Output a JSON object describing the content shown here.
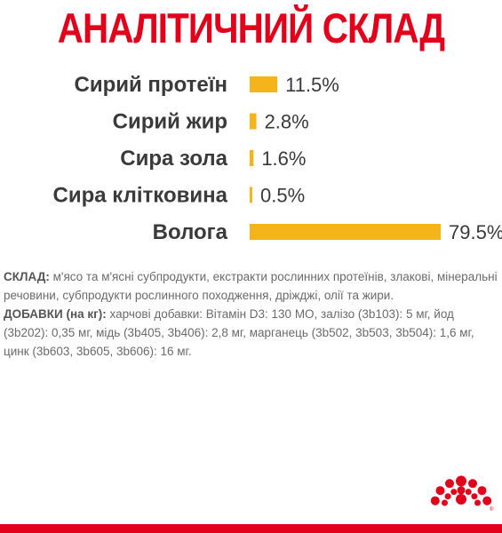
{
  "title": "АНАЛІТИЧНИЙ СКЛАД",
  "colors": {
    "brand_red": "#e2001a",
    "bar_yellow": "#f4b41a",
    "text_dark": "#3a3a3a",
    "text_body": "#6b6b6b"
  },
  "chart_data": {
    "type": "bar",
    "orientation": "horizontal",
    "title": "АНАЛІТИЧНИЙ СКЛАД",
    "categories": [
      "Сирий протеїн",
      "Сирий жир",
      "Сира зола",
      "Сира клітковина",
      "Вологa"
    ],
    "values": [
      11.5,
      2.8,
      1.6,
      0.5,
      79.5
    ],
    "value_labels": [
      "11.5%",
      "2.8%",
      "1.6%",
      "0.5%",
      "79.5%"
    ],
    "unit": "%",
    "xlim": [
      0,
      79.5
    ],
    "grid": false,
    "legend": "none"
  },
  "composition": {
    "label": "СКЛАД:",
    "text": " м'ясо та м'ясні субпродукти, екстракти рослинних протеїнів, злакові, мінеральні речовини, субпродукти рослинного походження, дріжджі, олії та жири."
  },
  "additives": {
    "label": "ДОБАВКИ (на кг):",
    "text": " харчові добавки: Вітамін D3: 130 МО, залізо (3b103): 5 мг, йод (3b202): 0,35 мг, мідь (3b405, 3b406): 2,8 мг, марганець (3b502, 3b503, 3b504): 1,6 мг, цинк (3b603, 3b605, 3b606): 16 мг."
  },
  "logo": {
    "icon": "royal-canin-crown-logo"
  }
}
